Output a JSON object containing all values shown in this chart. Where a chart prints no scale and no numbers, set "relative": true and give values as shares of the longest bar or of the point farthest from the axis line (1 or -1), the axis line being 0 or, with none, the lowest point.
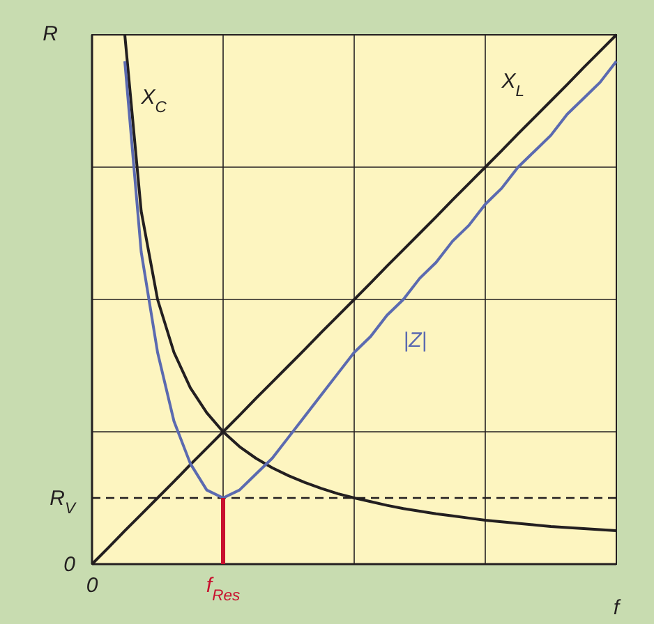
{
  "chart_data": {
    "type": "line",
    "relative": true,
    "xlabel": "f",
    "ylabel": "R",
    "categories": [
      "0",
      null,
      null,
      null,
      null,
      null,
      null,
      null,
      "f$_{Res}$",
      null,
      null,
      null,
      null,
      null,
      null,
      null,
      null,
      null,
      null,
      null,
      null,
      null,
      null,
      null,
      null,
      null,
      null,
      null,
      null,
      null,
      null,
      null,
      null
    ],
    "grid": true,
    "line_style": "solid",
    "annotations": [
      "0"
    ],
    "ref_lines": [
      {
        "axis": "y",
        "value": 0.125,
        "label": "R$_{V}$",
        "color": "#231f20",
        "line_style": "dashed"
      }
    ],
    "series": [
      {
        "name": "X$_{C}$",
        "color": "#231f20",
        "values": [
          null,
          null,
          1,
          0.667,
          0.5,
          0.4,
          0.333,
          0.286,
          0.25,
          0.222,
          0.2,
          0.182,
          0.167,
          0.154,
          0.143,
          0.133,
          0.125,
          0.118,
          0.111,
          0.105,
          0.1,
          0.095,
          0.091,
          0.087,
          0.083,
          0.08,
          0.077,
          0.074,
          0.071,
          0.069,
          0.067,
          0.065,
          0.063
        ]
      },
      {
        "name": "X$_{L}$",
        "color": "#231f20",
        "values": [
          0,
          0.031,
          0.063,
          0.094,
          0.125,
          0.156,
          0.188,
          0.219,
          0.25,
          0.281,
          0.313,
          0.344,
          0.375,
          0.406,
          0.438,
          0.469,
          0.5,
          0.531,
          0.563,
          0.594,
          0.625,
          0.656,
          0.688,
          0.719,
          0.75,
          0.781,
          0.813,
          0.844,
          0.875,
          0.906,
          0.938,
          0.969,
          1
        ]
      },
      {
        "name": "|Z|",
        "color": "#5b6ab0",
        "values": [
          null,
          null,
          0.95,
          0.59,
          0.4,
          0.27,
          0.19,
          0.14,
          0.125,
          0.14,
          0.17,
          0.2,
          0.24,
          0.28,
          0.32,
          0.36,
          0.4,
          0.43,
          0.47,
          0.5,
          0.54,
          0.57,
          0.61,
          0.64,
          0.68,
          0.71,
          0.75,
          0.78,
          0.81,
          0.85,
          0.88,
          0.91,
          0.95
        ]
      },
      {
        "type": "bar",
        "color": "#c8102e",
        "values": [
          null,
          null,
          null,
          null,
          null,
          null,
          null,
          null,
          0.125,
          null,
          null,
          null,
          null,
          null,
          null,
          null,
          null,
          null,
          null,
          null,
          null,
          null,
          null,
          null,
          null,
          null,
          null,
          null,
          null,
          null,
          null,
          null,
          null
        ]
      }
    ]
  }
}
